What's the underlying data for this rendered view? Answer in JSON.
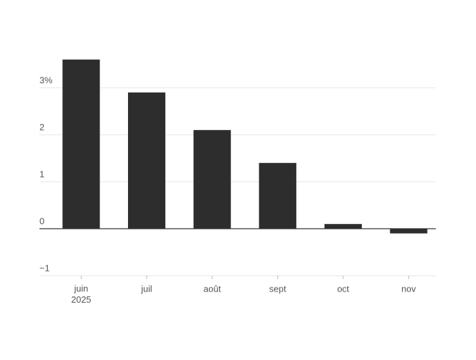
{
  "chart_data": {
    "type": "bar",
    "categories": [
      "juin\n2025",
      "juil",
      "août",
      "sept",
      "oct",
      "nov"
    ],
    "values": [
      3.6,
      2.9,
      2.1,
      1.4,
      0.1,
      -0.1
    ],
    "color": "#2d2d2d",
    "ylim": [
      -1,
      3.6
    ],
    "yticks": [
      {
        "value": -1,
        "label": "−1"
      },
      0,
      1,
      2,
      {
        "value": 3,
        "label": "3%"
      }
    ],
    "grid": true
  }
}
